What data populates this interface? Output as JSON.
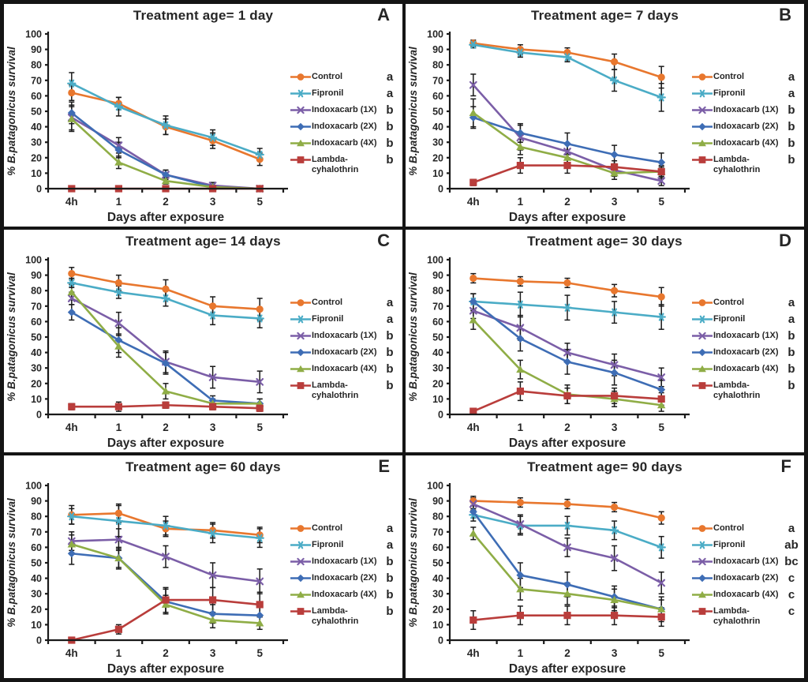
{
  "figure": {
    "xlabel": "Days after exposure",
    "ylabel": {
      "prefix": "% ",
      "species": "B.patagonicus",
      "suffix": " survival"
    },
    "x_ticklabels": [
      "4h",
      "1",
      "2",
      "3",
      "5"
    ],
    "yticks": [
      0,
      10,
      20,
      30,
      40,
      50,
      60,
      70,
      80,
      90,
      100
    ],
    "ylim": [
      0,
      100
    ],
    "axis_color": "#1a1a1a",
    "error_bar_color": "#1a1a1a",
    "series_style": [
      {
        "name": "Control",
        "color": "#E8772E",
        "marker": "circle"
      },
      {
        "name": "Fipronil",
        "color": "#4BACC6",
        "marker": "star"
      },
      {
        "name": "Indoxacarb (1X)",
        "color": "#7B5EA7",
        "marker": "xcross"
      },
      {
        "name": "Indoxacarb (2X)",
        "color": "#3E6DB5",
        "marker": "diamond"
      },
      {
        "name": "Indoxacarb (4X)",
        "color": "#8FAD46",
        "marker": "triangle"
      },
      {
        "name": "Lambda-cyhalothrin",
        "color": "#B93D3B",
        "marker": "square"
      }
    ]
  },
  "chart_data": [
    {
      "type": "line",
      "panel_label": "A",
      "title": "Treatment age= 1 day",
      "categories": [
        "4h",
        "1",
        "2",
        "3",
        "5"
      ],
      "ylim": [
        0,
        100
      ],
      "series": [
        {
          "name": "Control",
          "sig": "a",
          "values": [
            62,
            55,
            40,
            31,
            19
          ],
          "errors": [
            5,
            4,
            5,
            5,
            4
          ]
        },
        {
          "name": "Fipronil",
          "sig": "a",
          "values": [
            68,
            53,
            41,
            33,
            22
          ],
          "errors": [
            7,
            6,
            6,
            5,
            4
          ]
        },
        {
          "name": "Indoxacarb (1X)",
          "sig": "b",
          "values": [
            46,
            28,
            9,
            2,
            0
          ],
          "errors": [
            8,
            5,
            3,
            2,
            0
          ]
        },
        {
          "name": "Indoxacarb (2X)",
          "sig": "b",
          "values": [
            49,
            25,
            9,
            1,
            0
          ],
          "errors": [
            7,
            5,
            3,
            1,
            0
          ]
        },
        {
          "name": "Indoxacarb (4X)",
          "sig": "b",
          "values": [
            45,
            17,
            5,
            1,
            0
          ],
          "errors": [
            8,
            4,
            2,
            1,
            0
          ]
        },
        {
          "name": "Lambda-cyhalothrin",
          "sig": "b",
          "values": [
            0,
            0,
            0,
            0,
            0
          ],
          "errors": [
            0,
            0,
            0,
            0,
            0
          ]
        }
      ]
    },
    {
      "type": "line",
      "panel_label": "B",
      "title": "Treatment age= 7 days",
      "categories": [
        "4h",
        "1",
        "2",
        "3",
        "5"
      ],
      "ylim": [
        0,
        100
      ],
      "series": [
        {
          "name": "Control",
          "sig": "a",
          "values": [
            94,
            90,
            88,
            82,
            72
          ],
          "errors": [
            2,
            3,
            3,
            5,
            7
          ]
        },
        {
          "name": "Fipronil",
          "sig": "a",
          "values": [
            93,
            88,
            85,
            70,
            59
          ],
          "errors": [
            2,
            3,
            3,
            7,
            9
          ]
        },
        {
          "name": "Indoxacarb (1X)",
          "sig": "b",
          "values": [
            67,
            33,
            24,
            12,
            5
          ],
          "errors": [
            7,
            8,
            5,
            4,
            3
          ]
        },
        {
          "name": "Indoxacarb (2X)",
          "sig": "b",
          "values": [
            46,
            36,
            29,
            22,
            17
          ],
          "errors": [
            7,
            6,
            7,
            6,
            6
          ]
        },
        {
          "name": "Indoxacarb (4X)",
          "sig": "b",
          "values": [
            49,
            27,
            20,
            10,
            11
          ],
          "errors": [
            9,
            5,
            5,
            4,
            4
          ]
        },
        {
          "name": "Lambda-cyhalothrin",
          "sig": "b",
          "values": [
            4,
            15,
            15,
            14,
            11
          ],
          "errors": [
            2,
            5,
            5,
            4,
            3
          ]
        }
      ]
    },
    {
      "type": "line",
      "panel_label": "C",
      "title": "Treatment age= 14 days",
      "categories": [
        "4h",
        "1",
        "2",
        "3",
        "5"
      ],
      "ylim": [
        0,
        100
      ],
      "series": [
        {
          "name": "Control",
          "sig": "a",
          "values": [
            91,
            85,
            81,
            70,
            68
          ],
          "errors": [
            4,
            5,
            6,
            6,
            7
          ]
        },
        {
          "name": "Fipronil",
          "sig": "a",
          "values": [
            85,
            79,
            75,
            64,
            62
          ],
          "errors": [
            3,
            4,
            5,
            6,
            6
          ]
        },
        {
          "name": "Indoxacarb (1X)",
          "sig": "b",
          "values": [
            75,
            59,
            34,
            24,
            21
          ],
          "errors": [
            4,
            7,
            7,
            7,
            7
          ]
        },
        {
          "name": "Indoxacarb (2X)",
          "sig": "b",
          "values": [
            66,
            48,
            33,
            9,
            7
          ],
          "errors": [
            5,
            8,
            7,
            3,
            3
          ]
        },
        {
          "name": "Indoxacarb (4X)",
          "sig": "b",
          "values": [
            79,
            44,
            15,
            7,
            7
          ],
          "errors": [
            5,
            7,
            5,
            3,
            3
          ]
        },
        {
          "name": "Lambda-cyhalothrin",
          "sig": "b",
          "values": [
            5,
            5,
            6,
            5,
            4
          ],
          "errors": [
            2,
            3,
            2,
            2,
            2
          ]
        }
      ]
    },
    {
      "type": "line",
      "panel_label": "D",
      "title": "Treatment age= 30 days",
      "categories": [
        "4h",
        "1",
        "2",
        "3",
        "5"
      ],
      "ylim": [
        0,
        100
      ],
      "series": [
        {
          "name": "Control",
          "sig": "a",
          "values": [
            88,
            86,
            85,
            80,
            76
          ],
          "errors": [
            3,
            3,
            3,
            4,
            6
          ]
        },
        {
          "name": "Fipronil",
          "sig": "a",
          "values": [
            73,
            71,
            69,
            66,
            63
          ],
          "errors": [
            5,
            8,
            8,
            7,
            8
          ]
        },
        {
          "name": "Indoxacarb (1X)",
          "sig": "b",
          "values": [
            67,
            56,
            40,
            32,
            24
          ],
          "errors": [
            5,
            8,
            6,
            7,
            6
          ]
        },
        {
          "name": "Indoxacarb (2X)",
          "sig": "b",
          "values": [
            73,
            49,
            34,
            27,
            16
          ],
          "errors": [
            5,
            8,
            8,
            8,
            6
          ]
        },
        {
          "name": "Indoxacarb (4X)",
          "sig": "b",
          "values": [
            61,
            29,
            13,
            10,
            6
          ],
          "errors": [
            6,
            6,
            6,
            5,
            4
          ]
        },
        {
          "name": "Lambda-cyhalothrin",
          "sig": "b",
          "values": [
            2,
            15,
            12,
            12,
            10
          ],
          "errors": [
            1,
            6,
            5,
            5,
            4
          ]
        }
      ]
    },
    {
      "type": "line",
      "panel_label": "E",
      "title": "Treatment age= 60 days",
      "categories": [
        "4h",
        "1",
        "2",
        "3",
        "5"
      ],
      "ylim": [
        0,
        100
      ],
      "series": [
        {
          "name": "Control",
          "sig": "a",
          "values": [
            81,
            82,
            72,
            71,
            68
          ],
          "errors": [
            6,
            6,
            5,
            5,
            5
          ]
        },
        {
          "name": "Fipronil",
          "sig": "a",
          "values": [
            80,
            77,
            74,
            69,
            66
          ],
          "errors": [
            5,
            10,
            6,
            6,
            6
          ]
        },
        {
          "name": "Indoxacarb (1X)",
          "sig": "b",
          "values": [
            64,
            65,
            54,
            42,
            38
          ],
          "errors": [
            6,
            7,
            7,
            8,
            8
          ]
        },
        {
          "name": "Indoxacarb (2X)",
          "sig": "b",
          "values": [
            56,
            53,
            25,
            17,
            16
          ],
          "errors": [
            7,
            7,
            8,
            6,
            6
          ]
        },
        {
          "name": "Indoxacarb (4X)",
          "sig": "b",
          "values": [
            62,
            53,
            23,
            13,
            11
          ],
          "errors": [
            6,
            6,
            6,
            5,
            4
          ]
        },
        {
          "name": "Lambda-cyhalothrin",
          "sig": "b",
          "values": [
            0,
            7,
            26,
            26,
            23
          ],
          "errors": [
            1,
            3,
            8,
            8,
            8
          ]
        }
      ]
    },
    {
      "type": "line",
      "panel_label": "F",
      "title": "Treatment age= 90 days",
      "categories": [
        "4h",
        "1",
        "2",
        "3",
        "5"
      ],
      "ylim": [
        0,
        100
      ],
      "series": [
        {
          "name": "Control",
          "sig": "a",
          "values": [
            90,
            89,
            88,
            86,
            79
          ],
          "errors": [
            3,
            3,
            3,
            3,
            4
          ]
        },
        {
          "name": "Fipronil",
          "sig": "ab",
          "values": [
            81,
            74,
            74,
            71,
            60
          ],
          "errors": [
            4,
            6,
            6,
            6,
            7
          ]
        },
        {
          "name": "Indoxacarb (1X)",
          "sig": "bc",
          "values": [
            88,
            75,
            60,
            53,
            37
          ],
          "errors": [
            4,
            6,
            6,
            8,
            7
          ]
        },
        {
          "name": "Indoxacarb (2X)",
          "sig": "c",
          "values": [
            83,
            42,
            36,
            28,
            20
          ],
          "errors": [
            4,
            8,
            8,
            7,
            8
          ]
        },
        {
          "name": "Indoxacarb (4X)",
          "sig": "c",
          "values": [
            69,
            33,
            30,
            26,
            20
          ],
          "errors": [
            4,
            7,
            7,
            7,
            6
          ]
        },
        {
          "name": "Lambda-cyhalothrin",
          "sig": "c",
          "values": [
            13,
            16,
            16,
            16,
            15
          ],
          "errors": [
            6,
            6,
            6,
            6,
            6
          ]
        }
      ]
    }
  ]
}
